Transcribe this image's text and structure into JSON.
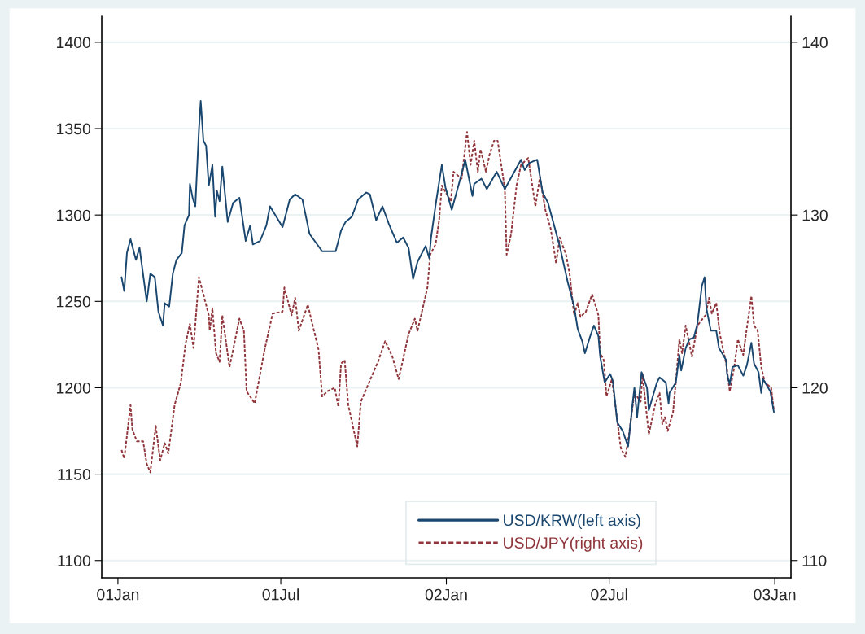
{
  "chart_data": {
    "type": "line",
    "xlim": [
      "2000-12-14",
      "2003-01-19"
    ],
    "xticks": [
      {
        "value": "2001-01-01",
        "label": "01Jan"
      },
      {
        "value": "2001-07-01",
        "label": "01Jul"
      },
      {
        "value": "2002-01-01",
        "label": "02Jan"
      },
      {
        "value": "2002-07-01",
        "label": "02Jul"
      },
      {
        "value": "2003-01-01",
        "label": "03Jan"
      }
    ],
    "ylim": [
      1090,
      1415
    ],
    "yticks": [
      1100,
      1150,
      1200,
      1250,
      1300,
      1350,
      1400
    ],
    "y2lim": [
      109,
      141.5
    ],
    "y2ticks": [
      110,
      120,
      130,
      140
    ],
    "grid": "y",
    "legend": "bottom right",
    "series": [
      {
        "name": "USD/KRW(left axis)",
        "color": "#1a476f",
        "line_style": "solid",
        "axis": "y",
        "x": [
          "2001-01-05",
          "2001-01-08",
          "2001-01-11",
          "2001-01-15",
          "2001-01-21",
          "2001-01-25",
          "2001-02-02",
          "2001-02-06",
          "2001-02-11",
          "2001-02-15",
          "2001-02-20",
          "2001-02-22",
          "2001-02-27",
          "2001-03-03",
          "2001-03-07",
          "2001-03-13",
          "2001-03-16",
          "2001-03-21",
          "2001-03-22",
          "2001-03-25",
          "2001-03-28",
          "2001-04-01",
          "2001-04-03",
          "2001-04-06",
          "2001-04-09",
          "2001-04-12",
          "2001-04-16",
          "2001-04-19",
          "2001-04-21",
          "2001-04-24",
          "2001-04-27",
          "2001-05-03",
          "2001-05-09",
          "2001-05-16",
          "2001-05-23",
          "2001-05-28",
          "2001-05-31",
          "2001-06-08",
          "2001-06-15",
          "2001-06-19",
          "2001-07-03",
          "2001-07-11",
          "2001-07-17",
          "2001-07-25",
          "2001-08-02",
          "2001-08-16",
          "2001-08-31",
          "2001-09-06",
          "2001-09-11",
          "2001-09-18",
          "2001-09-25",
          "2001-10-04",
          "2001-10-08",
          "2001-10-15",
          "2001-10-22",
          "2001-10-29",
          "2001-11-07",
          "2001-11-14",
          "2001-11-20",
          "2001-11-25",
          "2001-11-30",
          "2001-12-09",
          "2001-12-13",
          "2001-12-15",
          "2001-12-21",
          "2001-12-27",
          "2001-12-31",
          "2002-01-07",
          "2002-01-16",
          "2002-01-22",
          "2002-01-30",
          "2002-02-01",
          "2002-02-09",
          "2002-02-15",
          "2002-02-26",
          "2002-03-07",
          "2002-03-25",
          "2002-03-29",
          "2002-04-03",
          "2002-04-12",
          "2002-04-18",
          "2002-04-24",
          "2002-05-07",
          "2002-05-16",
          "2002-05-23",
          "2002-05-27",
          "2002-06-01",
          "2002-06-04",
          "2002-06-10",
          "2002-06-14",
          "2002-06-19",
          "2002-06-21",
          "2002-06-26",
          "2002-07-02",
          "2002-07-05",
          "2002-07-10",
          "2002-07-16",
          "2002-07-22",
          "2002-07-27",
          "2002-07-29",
          "2002-08-01",
          "2002-08-06",
          "2002-08-12",
          "2002-08-14",
          "2002-08-19",
          "2002-08-23",
          "2002-08-26",
          "2002-09-02",
          "2002-09-05",
          "2002-09-06",
          "2002-09-13",
          "2002-09-17",
          "2002-09-19",
          "2002-09-24",
          "2002-09-28",
          "2002-10-03",
          "2002-10-07",
          "2002-10-12",
          "2002-10-15",
          "2002-10-17",
          "2002-10-22",
          "2002-10-28",
          "2002-10-31",
          "2002-11-08",
          "2002-11-09",
          "2002-11-12",
          "2002-11-15",
          "2002-11-21",
          "2002-11-27",
          "2002-12-01",
          "2002-12-06",
          "2002-12-09",
          "2002-12-14",
          "2002-12-17",
          "2002-12-19",
          "2002-12-27",
          "2002-12-31"
        ],
        "values": [
          1264,
          1256,
          1278,
          1286,
          1274,
          1281,
          1250,
          1266,
          1264,
          1244,
          1236,
          1249,
          1247,
          1266,
          1274,
          1278,
          1294,
          1300,
          1318,
          1310,
          1305,
          1349,
          1366,
          1343,
          1340,
          1317,
          1329,
          1299,
          1314,
          1308,
          1328,
          1296,
          1307,
          1310,
          1285,
          1294,
          1283,
          1285,
          1294,
          1305,
          1293,
          1309,
          1312,
          1309,
          1289,
          1279,
          1279,
          1291,
          1296,
          1299,
          1309,
          1313,
          1312,
          1297,
          1305,
          1295,
          1284,
          1287,
          1281,
          1263,
          1273,
          1282,
          1275,
          1287,
          1309,
          1329,
          1316,
          1303,
          1320,
          1332,
          1311,
          1318,
          1321,
          1315,
          1325,
          1315,
          1332,
          1326,
          1330,
          1332,
          1313,
          1307,
          1282,
          1261,
          1247,
          1234,
          1227,
          1220,
          1230,
          1236,
          1230,
          1218,
          1203,
          1208,
          1204,
          1180,
          1175,
          1166,
          1191,
          1200,
          1183,
          1209,
          1200,
          1187,
          1196,
          1203,
          1206,
          1203,
          1191,
          1197,
          1203,
          1219,
          1210,
          1223,
          1228,
          1229,
          1237,
          1259,
          1264,
          1246,
          1233,
          1233,
          1223,
          1216,
          1208,
          1202,
          1212,
          1213,
          1207,
          1213,
          1226,
          1214,
          1209,
          1197,
          1205,
          1198,
          1186
        ]
      },
      {
        "name": "USD/JPY(right axis)",
        "color": "#90353b",
        "line_style": "dashed",
        "axis": "y2",
        "x": [
          "2001-01-05",
          "2001-01-08",
          "2001-01-15",
          "2001-01-17",
          "2001-01-22",
          "2001-01-29",
          "2001-02-02",
          "2001-02-06",
          "2001-02-12",
          "2001-02-17",
          "2001-02-22",
          "2001-02-26",
          "2001-03-05",
          "2001-03-12",
          "2001-03-17",
          "2001-03-22",
          "2001-03-26",
          "2001-04-01",
          "2001-04-12",
          "2001-04-13",
          "2001-04-16",
          "2001-04-20",
          "2001-04-24",
          "2001-04-27",
          "2001-05-05",
          "2001-05-09",
          "2001-05-16",
          "2001-05-21",
          "2001-05-24",
          "2001-06-02",
          "2001-06-13",
          "2001-06-22",
          "2001-07-03",
          "2001-07-05",
          "2001-07-13",
          "2001-07-17",
          "2001-07-21",
          "2001-07-31",
          "2001-08-12",
          "2001-08-16",
          "2001-08-22",
          "2001-08-30",
          "2001-09-03",
          "2001-09-06",
          "2001-09-10",
          "2001-09-14",
          "2001-09-24",
          "2001-09-28",
          "2001-10-07",
          "2001-10-17",
          "2001-10-25",
          "2001-11-02",
          "2001-11-09",
          "2001-11-20",
          "2001-11-27",
          "2001-11-30",
          "2001-12-11",
          "2001-12-14",
          "2001-12-20",
          "2001-12-24",
          "2001-12-27",
          "2002-01-06",
          "2002-01-09",
          "2002-01-18",
          "2002-01-24",
          "2002-01-28",
          "2002-02-01",
          "2002-02-05",
          "2002-02-08",
          "2002-02-14",
          "2002-02-18",
          "2002-02-23",
          "2002-02-27",
          "2002-03-07",
          "2002-03-09",
          "2002-03-14",
          "2002-03-20",
          "2002-03-25",
          "2002-04-02",
          "2002-04-10",
          "2002-04-15",
          "2002-04-21",
          "2002-04-27",
          "2002-05-03",
          "2002-05-07",
          "2002-05-14",
          "2002-05-18",
          "2002-05-23",
          "2002-05-27",
          "2002-05-30",
          "2002-06-05",
          "2002-06-12",
          "2002-06-19",
          "2002-06-21",
          "2002-06-25",
          "2002-06-28",
          "2002-07-04",
          "2002-07-10",
          "2002-07-14",
          "2002-07-19",
          "2002-07-23",
          "2002-07-29",
          "2002-08-05",
          "2002-08-07",
          "2002-08-14",
          "2002-08-21",
          "2002-08-26",
          "2002-08-29",
          "2002-09-01",
          "2002-09-04",
          "2002-09-10",
          "2002-09-13",
          "2002-09-17",
          "2002-09-20",
          "2002-09-24",
          "2002-10-01",
          "2002-10-07",
          "2002-10-16",
          "2002-10-20",
          "2002-10-23",
          "2002-10-28",
          "2002-11-01",
          "2002-11-08",
          "2002-11-12",
          "2002-11-17",
          "2002-11-21",
          "2002-11-27",
          "2002-11-30",
          "2002-12-06",
          "2002-12-09",
          "2002-12-13",
          "2002-12-17",
          "2002-12-21",
          "2002-12-28",
          "2002-12-31"
        ],
        "values": [
          116.4,
          115.9,
          119.0,
          117.6,
          116.9,
          116.9,
          115.6,
          115.1,
          117.8,
          115.8,
          116.8,
          116.2,
          119.0,
          120.3,
          122.5,
          123.7,
          122.3,
          126.4,
          124.2,
          123.3,
          124.6,
          122.0,
          121.5,
          124.2,
          121.2,
          122.2,
          124.0,
          123.3,
          119.8,
          119.1,
          122.2,
          124.3,
          124.4,
          125.8,
          124.2,
          125.2,
          123.3,
          124.8,
          122.2,
          119.5,
          119.8,
          120.0,
          118.9,
          121.4,
          121.6,
          119.0,
          116.6,
          119.2,
          120.3,
          121.5,
          122.7,
          121.8,
          120.5,
          123.1,
          124.0,
          123.3,
          125.8,
          127.7,
          128.3,
          129.7,
          131.7,
          130.8,
          132.5,
          132.1,
          134.8,
          132.9,
          134.3,
          132.5,
          133.8,
          132.5,
          133.5,
          134.3,
          134.3,
          131.5,
          127.7,
          128.9,
          131.7,
          132.9,
          133.3,
          130.5,
          132.2,
          130.3,
          129.2,
          127.2,
          128.7,
          127.7,
          126.6,
          124.2,
          124.9,
          124.1,
          124.4,
          125.4,
          124.2,
          122.0,
          121.6,
          119.5,
          120.5,
          118.1,
          116.5,
          116.0,
          117.3,
          119.7,
          119.2,
          120.8,
          117.3,
          119.0,
          119.7,
          117.9,
          118.3,
          117.5,
          118.6,
          120.3,
          122.8,
          122.0,
          123.6,
          121.8,
          123.6,
          124.2,
          125.2,
          124.3,
          124.9,
          123.1,
          121.4,
          119.8,
          121.2,
          122.8,
          121.9,
          123.1,
          125.3,
          123.6,
          123.3,
          121.2,
          120.3,
          120.0,
          118.7
        ]
      }
    ]
  }
}
